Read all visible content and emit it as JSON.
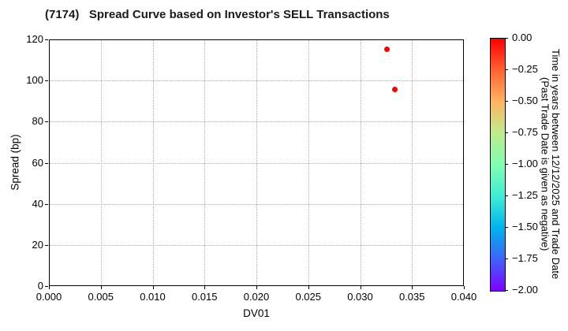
{
  "title": "(7174)   Spread Curve based on Investor's SELL Transactions",
  "chart_data": {
    "type": "scatter",
    "title": "(7174)   Spread Curve based on Investor's SELL Transactions",
    "xlabel": "DV01",
    "ylabel": "Spread (bp)",
    "xlim": [
      0.0,
      0.04
    ],
    "ylim": [
      0,
      120
    ],
    "grid": "dotted",
    "legend": "none",
    "xticks": {
      "values": [
        0.0,
        0.005,
        0.01,
        0.015,
        0.02,
        0.025,
        0.03,
        0.035,
        0.04
      ],
      "labels": [
        "0.000",
        "0.005",
        "0.010",
        "0.015",
        "0.020",
        "0.025",
        "0.030",
        "0.035",
        "0.040"
      ]
    },
    "yticks": {
      "values": [
        0,
        20,
        40,
        60,
        80,
        100,
        120
      ],
      "labels": [
        "0",
        "20",
        "40",
        "60",
        "80",
        "100",
        "120"
      ]
    },
    "points": [
      {
        "x": 0.0325,
        "y": 115.5,
        "time_years": 0.0,
        "color": "#ff0000"
      },
      {
        "x": 0.0333,
        "y": 96.0,
        "time_years": 0.0,
        "color": "#ff0000"
      }
    ],
    "colorbar": {
      "label_line1": "Time in years between 12/12/2025 and Trade Date",
      "label_line2": "(Past Trade Date is given as negative)",
      "range_top": 0.0,
      "range_bottom": -2.0,
      "tick_labels": [
        "0.00",
        "−0.25",
        "−0.50",
        "−0.75",
        "−1.00",
        "−1.25",
        "−1.50",
        "−1.75",
        "−2.00"
      ],
      "gradient": [
        {
          "pos": 0.0,
          "color": "#ff0000"
        },
        {
          "pos": 0.125,
          "color": "#ff6231"
        },
        {
          "pos": 0.25,
          "color": "#ffb461"
        },
        {
          "pos": 0.375,
          "color": "#bfec8e"
        },
        {
          "pos": 0.5,
          "color": "#80ffb4"
        },
        {
          "pos": 0.625,
          "color": "#40ecd4"
        },
        {
          "pos": 0.75,
          "color": "#00b4ec"
        },
        {
          "pos": 0.875,
          "color": "#4062fa"
        },
        {
          "pos": 1.0,
          "color": "#8000ff"
        }
      ]
    },
    "colors": {
      "marker": "#ff0000",
      "grid": "#aaaaaa",
      "spine": "#000000",
      "text": "#000000",
      "background": "#ffffff"
    }
  }
}
